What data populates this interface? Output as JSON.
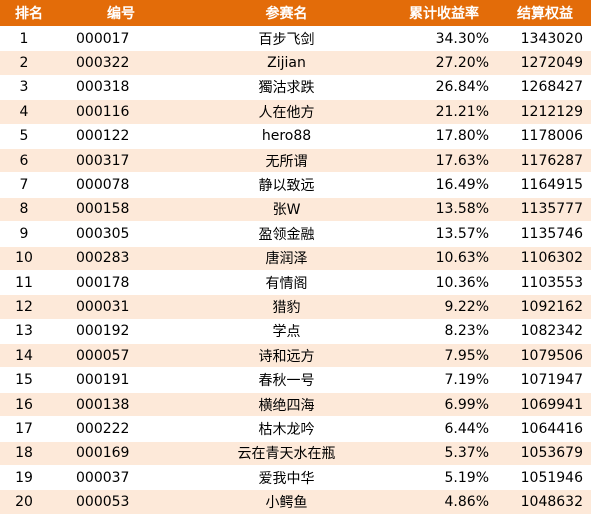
{
  "colors": {
    "header_bg": "#E36C09",
    "header_text": "#FFFFFF",
    "stripe": "#FDE9D9",
    "row": "#FFFFFF"
  },
  "headers": {
    "rank": "排名",
    "code": "编号",
    "name": "参赛名",
    "return": "累计收益率",
    "equity": "结算权益"
  },
  "rows": [
    {
      "rank": "1",
      "code": "000017",
      "name": "百步飞剑",
      "return": "34.30%",
      "equity": "1343020"
    },
    {
      "rank": "2",
      "code": "000322",
      "name": "Zijian",
      "return": "27.20%",
      "equity": "1272049"
    },
    {
      "rank": "3",
      "code": "000318",
      "name": "獨沽求跌",
      "return": "26.84%",
      "equity": "1268427"
    },
    {
      "rank": "4",
      "code": "000116",
      "name": "人在他方",
      "return": "21.21%",
      "equity": "1212129"
    },
    {
      "rank": "5",
      "code": "000122",
      "name": "hero88",
      "return": "17.80%",
      "equity": "1178006"
    },
    {
      "rank": "6",
      "code": "000317",
      "name": "无所谓",
      "return": "17.63%",
      "equity": "1176287"
    },
    {
      "rank": "7",
      "code": "000078",
      "name": "静以致远",
      "return": "16.49%",
      "equity": "1164915"
    },
    {
      "rank": "8",
      "code": "000158",
      "name": "张W",
      "return": "13.58%",
      "equity": "1135777"
    },
    {
      "rank": "9",
      "code": "000305",
      "name": "盈领金融",
      "return": "13.57%",
      "equity": "1135746"
    },
    {
      "rank": "10",
      "code": "000283",
      "name": "唐润泽",
      "return": "10.63%",
      "equity": "1106302"
    },
    {
      "rank": "11",
      "code": "000178",
      "name": "有情阁",
      "return": "10.36%",
      "equity": "1103553"
    },
    {
      "rank": "12",
      "code": "000031",
      "name": "猎豹",
      "return": "9.22%",
      "equity": "1092162"
    },
    {
      "rank": "13",
      "code": "000192",
      "name": "学点",
      "return": "8.23%",
      "equity": "1082342"
    },
    {
      "rank": "14",
      "code": "000057",
      "name": "诗和远方",
      "return": "7.95%",
      "equity": "1079506"
    },
    {
      "rank": "15",
      "code": "000191",
      "name": "春秋一号",
      "return": "7.19%",
      "equity": "1071947"
    },
    {
      "rank": "16",
      "code": "000138",
      "name": "横绝四海",
      "return": "6.99%",
      "equity": "1069941"
    },
    {
      "rank": "17",
      "code": "000222",
      "name": "枯木龙吟",
      "return": "6.44%",
      "equity": "1064416"
    },
    {
      "rank": "18",
      "code": "000169",
      "name": "云在青天水在瓶",
      "return": "5.37%",
      "equity": "1053679"
    },
    {
      "rank": "19",
      "code": "000037",
      "name": "爱我中华",
      "return": "5.19%",
      "equity": "1051946"
    },
    {
      "rank": "20",
      "code": "000053",
      "name": "小鳄鱼",
      "return": "4.86%",
      "equity": "1048632"
    }
  ]
}
